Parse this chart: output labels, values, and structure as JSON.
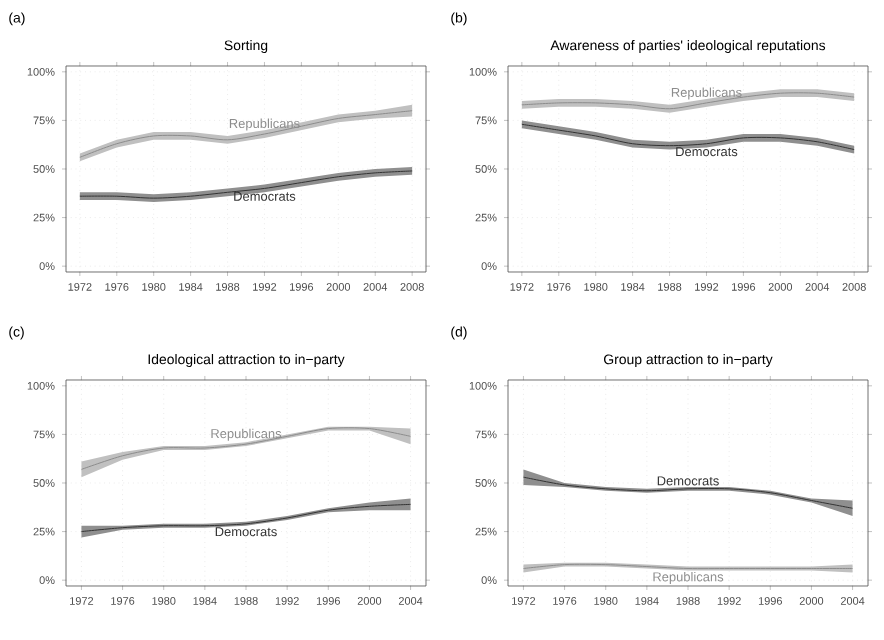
{
  "chart_data": [
    {
      "type": "line",
      "title": "Sorting",
      "annotations": [
        "(a)"
      ],
      "x": [
        1972,
        1976,
        1980,
        1984,
        1988,
        1992,
        1996,
        2000,
        2004,
        2008
      ],
      "xlim": [
        1970.5,
        2009.5
      ],
      "xticks": [
        1972,
        1976,
        1980,
        1984,
        1988,
        1992,
        1996,
        2000,
        2004,
        2008
      ],
      "ylim": [
        -3,
        103
      ],
      "yticks": [
        {
          "value": 0,
          "label": "0%"
        },
        {
          "value": 25,
          "label": "25%"
        },
        {
          "value": 50,
          "label": "50%"
        },
        {
          "value": 75,
          "label": "75%"
        },
        {
          "value": 100,
          "label": "100%"
        }
      ],
      "grid": true,
      "series": [
        {
          "name": "Republicans",
          "color": "#8c8c8c",
          "values": [
            56,
            63,
            67,
            67,
            65,
            68,
            72,
            76,
            78,
            80
          ],
          "lower": [
            54,
            61,
            65,
            65,
            63,
            66,
            70,
            74,
            76,
            77
          ],
          "upper": [
            58,
            65,
            69,
            69,
            67,
            70,
            74,
            78,
            80,
            83
          ]
        },
        {
          "name": "Democrats",
          "color": "#333333",
          "values": [
            36,
            36,
            35,
            36,
            38,
            40,
            43,
            46,
            48,
            49
          ],
          "lower": [
            34,
            34,
            33,
            34,
            36,
            38,
            41,
            44,
            46,
            47
          ],
          "upper": [
            38,
            38,
            37,
            38,
            40,
            42,
            45,
            48,
            50,
            51
          ]
        }
      ]
    },
    {
      "type": "line",
      "title": "Awareness of parties' ideological reputations",
      "annotations": [
        "(b)"
      ],
      "x": [
        1972,
        1976,
        1980,
        1984,
        1988,
        1992,
        1996,
        2000,
        2004,
        2008
      ],
      "xlim": [
        1970.5,
        2009.5
      ],
      "xticks": [
        1972,
        1976,
        1980,
        1984,
        1988,
        1992,
        1996,
        2000,
        2004,
        2008
      ],
      "ylim": [
        -3,
        103
      ],
      "yticks": [
        {
          "value": 0,
          "label": "0%"
        },
        {
          "value": 25,
          "label": "25%"
        },
        {
          "value": 50,
          "label": "50%"
        },
        {
          "value": 75,
          "label": "75%"
        },
        {
          "value": 100,
          "label": "100%"
        }
      ],
      "grid": true,
      "series": [
        {
          "name": "Republicans",
          "color": "#8c8c8c",
          "values": [
            83,
            84,
            84,
            83,
            81,
            84,
            87,
            89,
            89,
            87
          ],
          "lower": [
            81,
            82,
            82,
            81,
            79,
            82,
            85,
            87,
            87,
            85
          ],
          "upper": [
            85,
            86,
            86,
            85,
            83,
            86,
            89,
            91,
            91,
            89
          ]
        },
        {
          "name": "Democrats",
          "color": "#333333",
          "values": [
            73,
            70,
            67,
            63,
            62,
            63,
            66,
            66,
            64,
            60
          ],
          "lower": [
            71,
            68,
            65,
            61,
            60,
            61,
            64,
            64,
            62,
            58
          ],
          "upper": [
            75,
            72,
            69,
            65,
            64,
            65,
            68,
            68,
            66,
            62
          ]
        }
      ]
    },
    {
      "type": "line",
      "title": "Ideological attraction to in−party",
      "annotations": [
        "(c)"
      ],
      "x": [
        1972,
        1976,
        1980,
        1984,
        1988,
        1992,
        1996,
        2000,
        2004
      ],
      "xlim": [
        1970.5,
        2005.5
      ],
      "xticks": [
        1972,
        1976,
        1980,
        1984,
        1988,
        1992,
        1996,
        2000,
        2004
      ],
      "ylim": [
        -3,
        103
      ],
      "yticks": [
        {
          "value": 0,
          "label": "0%"
        },
        {
          "value": 25,
          "label": "25%"
        },
        {
          "value": 50,
          "label": "50%"
        },
        {
          "value": 75,
          "label": "75%"
        },
        {
          "value": 100,
          "label": "100%"
        }
      ],
      "grid": true,
      "series": [
        {
          "name": "Republicans",
          "color": "#8c8c8c",
          "values": [
            57,
            64,
            68,
            68,
            70,
            74,
            78,
            78,
            74
          ],
          "lower": [
            53,
            62,
            67,
            67,
            69,
            73,
            77,
            77,
            70
          ],
          "upper": [
            61,
            66,
            69,
            69,
            71,
            75,
            79,
            79,
            78
          ]
        },
        {
          "name": "Democrats",
          "color": "#333333",
          "values": [
            25,
            27,
            28,
            28,
            29,
            32,
            36,
            38,
            39
          ],
          "lower": [
            22,
            26,
            27,
            27,
            28,
            31,
            35,
            36,
            36
          ],
          "upper": [
            28,
            28,
            29,
            29,
            30,
            33,
            37,
            40,
            42
          ]
        }
      ]
    },
    {
      "type": "line",
      "title": "Group attraction to in−party",
      "annotations": [
        "(d)"
      ],
      "x": [
        1972,
        1976,
        1980,
        1984,
        1988,
        1992,
        1996,
        2000,
        2004
      ],
      "xlim": [
        1970.5,
        2005.5
      ],
      "xticks": [
        1972,
        1976,
        1980,
        1984,
        1988,
        1992,
        1996,
        2000,
        2004
      ],
      "ylim": [
        -3,
        103
      ],
      "yticks": [
        {
          "value": 0,
          "label": "0%"
        },
        {
          "value": 25,
          "label": "25%"
        },
        {
          "value": 50,
          "label": "50%"
        },
        {
          "value": 75,
          "label": "75%"
        },
        {
          "value": 100,
          "label": "100%"
        }
      ],
      "grid": true,
      "series": [
        {
          "name": "Democrats",
          "color": "#333333",
          "values": [
            53,
            49,
            47,
            46,
            47,
            47,
            45,
            41,
            37
          ],
          "lower": [
            49,
            48,
            46,
            45,
            46,
            46,
            44,
            40,
            33
          ],
          "upper": [
            57,
            50,
            48,
            47,
            48,
            48,
            46,
            42,
            41
          ]
        },
        {
          "name": "Republicans",
          "color": "#8c8c8c",
          "values": [
            6,
            8,
            8,
            7,
            6,
            6,
            6,
            6,
            6
          ],
          "lower": [
            4,
            7,
            7,
            6,
            5,
            5,
            5,
            5,
            4
          ],
          "upper": [
            8,
            9,
            9,
            8,
            7,
            7,
            7,
            7,
            8
          ]
        }
      ]
    }
  ]
}
